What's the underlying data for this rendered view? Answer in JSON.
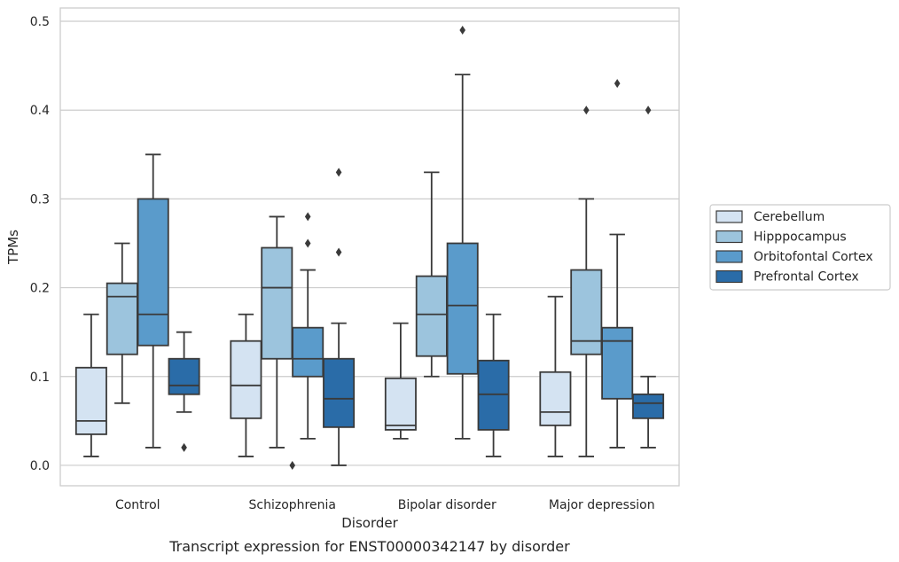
{
  "chart_data": {
    "type": "box",
    "caption": "Transcript expression for ENST00000342147 by disorder",
    "xlabel": "Disorder",
    "ylabel": "TPMs",
    "ylim": [
      -0.023,
      0.515
    ],
    "yticks": [
      "0.0",
      "0.1",
      "0.2",
      "0.3",
      "0.4",
      "0.5"
    ],
    "ytick_values": [
      0.0,
      0.1,
      0.2,
      0.3,
      0.4,
      0.5
    ],
    "grid": "horizontal",
    "legend_position": "right",
    "categories": [
      "Control",
      "Schizophrenia",
      "Bipolar disorder",
      "Major depression"
    ],
    "series": [
      {
        "name": "Cerebellum",
        "color": "#d4e3f2",
        "boxes": [
          {
            "whisker_low": 0.01,
            "q1": 0.035,
            "median": 0.05,
            "q3": 0.11,
            "whisker_high": 0.17,
            "outliers": []
          },
          {
            "whisker_low": 0.01,
            "q1": 0.053,
            "median": 0.09,
            "q3": 0.14,
            "whisker_high": 0.17,
            "outliers": []
          },
          {
            "whisker_low": 0.03,
            "q1": 0.04,
            "median": 0.045,
            "q3": 0.098,
            "whisker_high": 0.16,
            "outliers": []
          },
          {
            "whisker_low": 0.01,
            "q1": 0.045,
            "median": 0.06,
            "q3": 0.105,
            "whisker_high": 0.19,
            "outliers": []
          }
        ]
      },
      {
        "name": "Hipppocampus",
        "color": "#9cc4dd",
        "boxes": [
          {
            "whisker_low": 0.07,
            "q1": 0.125,
            "median": 0.19,
            "q3": 0.205,
            "whisker_high": 0.25,
            "outliers": []
          },
          {
            "whisker_low": 0.02,
            "q1": 0.12,
            "median": 0.2,
            "q3": 0.245,
            "whisker_high": 0.28,
            "outliers": []
          },
          {
            "whisker_low": 0.1,
            "q1": 0.123,
            "median": 0.17,
            "q3": 0.213,
            "whisker_high": 0.33,
            "outliers": []
          },
          {
            "whisker_low": 0.01,
            "q1": 0.125,
            "median": 0.14,
            "q3": 0.22,
            "whisker_high": 0.3,
            "outliers": [
              0.4
            ]
          }
        ]
      },
      {
        "name": "Orbitofontal Cortex",
        "color": "#5a9bcb",
        "boxes": [
          {
            "whisker_low": 0.02,
            "q1": 0.135,
            "median": 0.17,
            "q3": 0.3,
            "whisker_high": 0.35,
            "outliers": []
          },
          {
            "whisker_low": 0.03,
            "q1": 0.1,
            "median": 0.12,
            "q3": 0.155,
            "whisker_high": 0.22,
            "outliers": [
              0.25,
              0.28
            ]
          },
          {
            "whisker_low": 0.03,
            "q1": 0.103,
            "median": 0.18,
            "q3": 0.25,
            "whisker_high": 0.44,
            "outliers": [
              0.49
            ]
          },
          {
            "whisker_low": 0.02,
            "q1": 0.075,
            "median": 0.14,
            "q3": 0.155,
            "whisker_high": 0.26,
            "outliers": [
              0.43
            ]
          }
        ]
      },
      {
        "name": "Prefrontal Cortex",
        "color": "#2a6ca8",
        "boxes": [
          {
            "whisker_low": 0.06,
            "q1": 0.08,
            "median": 0.09,
            "q3": 0.12,
            "whisker_high": 0.15,
            "outliers": [
              0.02
            ]
          },
          {
            "whisker_low": 0.0,
            "q1": 0.043,
            "median": 0.075,
            "q3": 0.12,
            "whisker_high": 0.16,
            "outliers": [
              0.24,
              0.33
            ]
          },
          {
            "whisker_low": 0.01,
            "q1": 0.04,
            "median": 0.08,
            "q3": 0.118,
            "whisker_high": 0.17,
            "outliers": []
          },
          {
            "whisker_low": 0.02,
            "q1": 0.053,
            "median": 0.07,
            "q3": 0.08,
            "whisker_high": 0.1,
            "outliers": [
              0.4
            ]
          }
        ]
      }
    ],
    "extra_outliers": [
      {
        "category_index": 1,
        "value": 0.0
      }
    ]
  }
}
